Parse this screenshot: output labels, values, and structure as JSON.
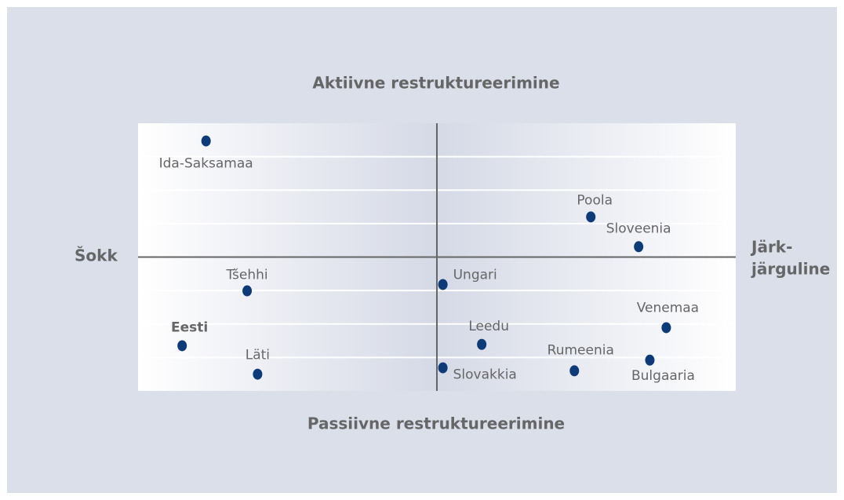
{
  "chart_data": {
    "type": "scatter",
    "top_label": "Aktiivne restruktureerimine",
    "bottom_label": "Passiivne restruktureerimine",
    "left_label": "Šokk",
    "right_label": [
      "Järk-",
      "järguline"
    ],
    "points": [
      "Ida-Saksamaa",
      "Poola",
      "Sloveenia",
      "Tšehhi",
      "Ungari",
      "Eesti",
      "Läti",
      "Leedu",
      "Slovakkia",
      "Venemaa",
      "Rumeenia",
      "Bulgaaria"
    ],
    "x": [
      -3.09,
      2.06,
      2.7,
      -2.54,
      0.08,
      -3.41,
      -2.4,
      0.6,
      0.08,
      3.07,
      1.84,
      2.85
    ],
    "y": [
      3.47,
      1.2,
      0.31,
      -1.01,
      -0.82,
      -2.65,
      -3.5,
      -2.61,
      -3.31,
      -2.11,
      -3.4,
      -3.08
    ],
    "color": "#0d3a78",
    "xlim": [
      -4,
      4
    ],
    "ylim": [
      -4,
      4
    ],
    "yticks": [
      -3,
      -2,
      -1,
      1,
      2,
      3
    ],
    "grid": true
  }
}
